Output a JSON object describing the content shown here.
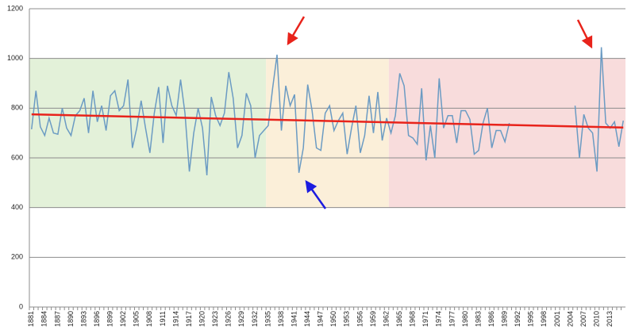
{
  "chart_data": {
    "type": "line",
    "categories": [
      "1881",
      null,
      null,
      "1884",
      null,
      null,
      "1887",
      null,
      null,
      "1890",
      null,
      null,
      "1893",
      null,
      null,
      "1896",
      null,
      null,
      "1899",
      null,
      null,
      "1902",
      null,
      null,
      "1905",
      null,
      null,
      "1908",
      null,
      null,
      "1911",
      null,
      null,
      "1914",
      null,
      null,
      "1917",
      null,
      null,
      "1920",
      null,
      null,
      "1923",
      null,
      null,
      "1926",
      null,
      null,
      "1929",
      null,
      null,
      "1932",
      null,
      null,
      "1935",
      null,
      null,
      "1938",
      null,
      null,
      "1941",
      null,
      null,
      "1944",
      null,
      null,
      "1947",
      null,
      null,
      "1950",
      null,
      null,
      "1953",
      null,
      null,
      "1956",
      null,
      null,
      "1959",
      null,
      null,
      "1962",
      null,
      null,
      "1965",
      null,
      null,
      "1968",
      null,
      null,
      "1971",
      null,
      null,
      "1974",
      null,
      null,
      "1977",
      null,
      null,
      "1980",
      null,
      null,
      "1983",
      null,
      null,
      "1986",
      null,
      null,
      "1989",
      null,
      null,
      "1992",
      null,
      null,
      "1995",
      null,
      null,
      "1998",
      null,
      null,
      "2001",
      null,
      null,
      "2004",
      null,
      null,
      "2007",
      null,
      null,
      "2010",
      null,
      null,
      "2013",
      null,
      null,
      null
    ],
    "series": [
      {
        "color": "#6b9bc3",
        "values": [
          715,
          870,
          725,
          690,
          760,
          700,
          695,
          800,
          720,
          690,
          770,
          790,
          840,
          700,
          870,
          745,
          810,
          710,
          850,
          870,
          790,
          810,
          915,
          640,
          720,
          830,
          720,
          620,
          780,
          885,
          660,
          890,
          810,
          770,
          915,
          780,
          545,
          700,
          800,
          720,
          530,
          845,
          770,
          730,
          780,
          945,
          840,
          640,
          690,
          860,
          810,
          600,
          690,
          710,
          730,
          880,
          1015,
          710,
          890,
          810,
          855,
          540,
          640,
          895,
          790,
          640,
          630,
          780,
          810,
          710,
          750,
          780,
          615,
          720,
          810,
          620,
          690,
          850,
          700,
          865,
          670,
          760,
          700,
          770,
          940,
          890,
          690,
          680,
          655,
          880,
          590,
          730,
          600,
          920,
          720,
          770,
          770,
          660,
          790,
          790,
          755,
          615,
          630,
          740,
          800,
          640,
          710,
          710,
          665,
          740,
          null,
          null,
          null,
          null,
          null,
          null,
          null,
          null,
          null,
          null,
          null,
          null,
          null,
          null,
          810,
          600,
          775,
          720,
          700,
          545,
          1045,
          740,
          720,
          745,
          645,
          750
        ]
      }
    ],
    "trend": {
      "color": "#e8231b",
      "values": [
        775,
        722
      ]
    },
    "bands": [
      {
        "from": 0,
        "to": 54,
        "y": [
          400,
          1000
        ],
        "color": "#e3f1d9"
      },
      {
        "from": 54,
        "to": 82,
        "y": [
          400,
          1000
        ],
        "color": "#fbefd9"
      },
      {
        "from": 82,
        "to": 136,
        "y": [
          400,
          1000
        ],
        "color": "#f8dcdc"
      }
    ],
    "ylim": [
      0,
      1200
    ],
    "yticks": [
      0,
      200,
      400,
      600,
      800,
      1000,
      1200
    ],
    "grid": true
  }
}
